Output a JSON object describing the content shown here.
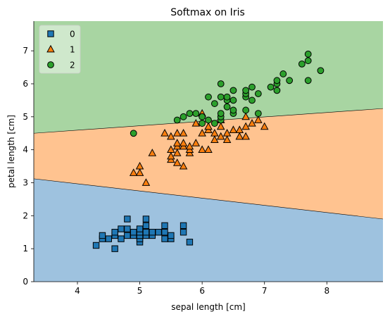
{
  "chart_data": {
    "type": "scatter",
    "title": "Softmax on Iris",
    "xlabel": "sepal length [cm]",
    "ylabel": "petal length [cm]",
    "xlim": [
      3.3,
      8.9
    ],
    "ylim": [
      0,
      7.9
    ],
    "xticks": [
      "4",
      "5",
      "6",
      "7",
      "8"
    ],
    "yticks": [
      "0",
      "1",
      "2",
      "3",
      "4",
      "5",
      "6",
      "7"
    ],
    "legend_position": "top-left",
    "grid": false,
    "decision_regions": [
      {
        "class": "0",
        "color": "#9ec2df"
      },
      {
        "class": "1",
        "color": "#ffc390"
      },
      {
        "class": "2",
        "color": "#a8d5a2"
      }
    ],
    "boundaries": [
      {
        "between": [
          "0",
          "1"
        ],
        "points": [
          [
            3.3,
            3.12
          ],
          [
            8.9,
            1.9
          ]
        ]
      },
      {
        "between": [
          "1",
          "2"
        ],
        "points": [
          [
            3.3,
            4.5
          ],
          [
            8.9,
            5.25
          ]
        ]
      }
    ],
    "series": [
      {
        "name": "0",
        "marker": "square",
        "color": "#1f77b4",
        "points": [
          [
            4.3,
            1.1
          ],
          [
            4.4,
            1.3
          ],
          [
            4.4,
            1.4
          ],
          [
            4.5,
            1.3
          ],
          [
            4.6,
            1.0
          ],
          [
            4.6,
            1.4
          ],
          [
            4.6,
            1.5
          ],
          [
            4.7,
            1.3
          ],
          [
            4.7,
            1.6
          ],
          [
            4.8,
            1.4
          ],
          [
            4.8,
            1.6
          ],
          [
            4.8,
            1.9
          ],
          [
            4.9,
            1.4
          ],
          [
            4.9,
            1.5
          ],
          [
            5.0,
            1.2
          ],
          [
            5.0,
            1.3
          ],
          [
            5.0,
            1.4
          ],
          [
            5.0,
            1.5
          ],
          [
            5.0,
            1.6
          ],
          [
            5.1,
            1.4
          ],
          [
            5.1,
            1.5
          ],
          [
            5.1,
            1.7
          ],
          [
            5.1,
            1.9
          ],
          [
            5.2,
            1.4
          ],
          [
            5.2,
            1.5
          ],
          [
            5.3,
            1.5
          ],
          [
            5.4,
            1.3
          ],
          [
            5.4,
            1.5
          ],
          [
            5.4,
            1.7
          ],
          [
            5.5,
            1.3
          ],
          [
            5.5,
            1.4
          ],
          [
            5.7,
            1.5
          ],
          [
            5.7,
            1.7
          ],
          [
            5.8,
            1.2
          ]
        ]
      },
      {
        "name": "1",
        "marker": "triangle",
        "color": "#ff7f0e",
        "points": [
          [
            4.9,
            3.3
          ],
          [
            5.0,
            3.3
          ],
          [
            5.0,
            3.5
          ],
          [
            5.1,
            3.0
          ],
          [
            5.2,
            3.9
          ],
          [
            5.4,
            4.5
          ],
          [
            5.5,
            3.7
          ],
          [
            5.5,
            3.8
          ],
          [
            5.5,
            4.0
          ],
          [
            5.5,
            4.4
          ],
          [
            5.6,
            3.6
          ],
          [
            5.6,
            3.9
          ],
          [
            5.6,
            4.1
          ],
          [
            5.6,
            4.2
          ],
          [
            5.6,
            4.5
          ],
          [
            5.7,
            3.5
          ],
          [
            5.7,
            4.1
          ],
          [
            5.7,
            4.2
          ],
          [
            5.7,
            4.5
          ],
          [
            5.8,
            3.9
          ],
          [
            5.8,
            4.0
          ],
          [
            5.8,
            4.1
          ],
          [
            5.9,
            4.2
          ],
          [
            5.9,
            4.8
          ],
          [
            6.0,
            4.0
          ],
          [
            6.0,
            4.5
          ],
          [
            6.0,
            5.1
          ],
          [
            6.1,
            4.0
          ],
          [
            6.1,
            4.6
          ],
          [
            6.1,
            4.7
          ],
          [
            6.2,
            4.3
          ],
          [
            6.2,
            4.5
          ],
          [
            6.3,
            4.4
          ],
          [
            6.3,
            4.7
          ],
          [
            6.3,
            4.9
          ],
          [
            6.4,
            4.3
          ],
          [
            6.4,
            4.5
          ],
          [
            6.5,
            4.6
          ],
          [
            6.6,
            4.4
          ],
          [
            6.6,
            4.6
          ],
          [
            6.7,
            4.4
          ],
          [
            6.7,
            4.7
          ],
          [
            6.7,
            5.0
          ],
          [
            6.8,
            4.8
          ],
          [
            6.9,
            4.9
          ],
          [
            7.0,
            4.7
          ]
        ]
      },
      {
        "name": "2",
        "marker": "circle",
        "color": "#2ca02c",
        "points": [
          [
            4.9,
            4.5
          ],
          [
            5.6,
            4.9
          ],
          [
            5.7,
            5.0
          ],
          [
            5.8,
            5.1
          ],
          [
            5.9,
            5.1
          ],
          [
            6.0,
            4.8
          ],
          [
            6.0,
            5.0
          ],
          [
            6.1,
            4.9
          ],
          [
            6.1,
            5.6
          ],
          [
            6.2,
            4.8
          ],
          [
            6.2,
            5.4
          ],
          [
            6.3,
            4.9
          ],
          [
            6.3,
            5.0
          ],
          [
            6.3,
            5.1
          ],
          [
            6.3,
            5.6
          ],
          [
            6.3,
            6.0
          ],
          [
            6.4,
            5.3
          ],
          [
            6.4,
            5.5
          ],
          [
            6.4,
            5.6
          ],
          [
            6.5,
            5.1
          ],
          [
            6.5,
            5.2
          ],
          [
            6.5,
            5.5
          ],
          [
            6.5,
            5.8
          ],
          [
            6.7,
            5.2
          ],
          [
            6.7,
            5.6
          ],
          [
            6.7,
            5.7
          ],
          [
            6.7,
            5.8
          ],
          [
            6.8,
            5.5
          ],
          [
            6.8,
            5.9
          ],
          [
            6.9,
            5.1
          ],
          [
            6.9,
            5.7
          ],
          [
            7.1,
            5.9
          ],
          [
            7.2,
            5.8
          ],
          [
            7.2,
            6.0
          ],
          [
            7.2,
            6.1
          ],
          [
            7.3,
            6.3
          ],
          [
            7.4,
            6.1
          ],
          [
            7.6,
            6.6
          ],
          [
            7.7,
            6.1
          ],
          [
            7.7,
            6.7
          ],
          [
            7.7,
            6.9
          ],
          [
            7.9,
            6.4
          ]
        ]
      }
    ]
  }
}
